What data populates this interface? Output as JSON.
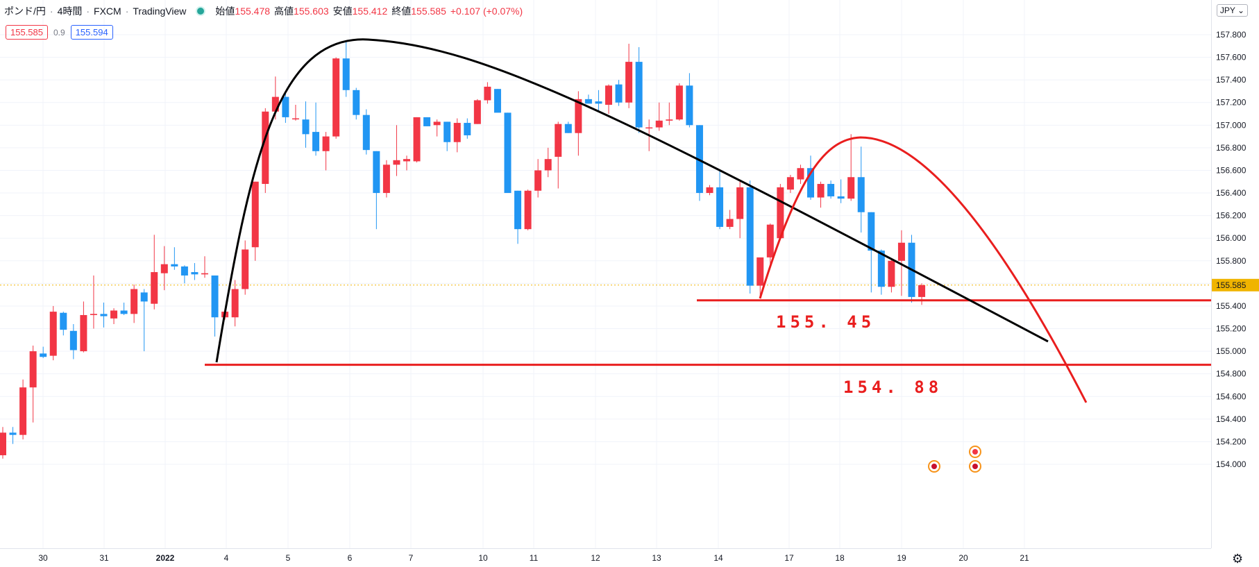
{
  "header": {
    "symbol": "ポンド/円",
    "interval": "4時間",
    "broker": "FXCM",
    "source": "TradingView",
    "open_label": "始値",
    "open": "155.478",
    "high_label": "高値",
    "high": "155.603",
    "low_label": "安値",
    "low": "155.412",
    "close_label": "終値",
    "close": "155.585",
    "change": "+0.107 (+0.07%)"
  },
  "quote": {
    "sell": "155.585",
    "spread": "0.9",
    "buy": "155.594"
  },
  "currency": "JPY",
  "price_axis": {
    "ticks": [
      "157.800",
      "157.600",
      "157.400",
      "157.200",
      "157.000",
      "156.800",
      "156.600",
      "156.400",
      "156.200",
      "156.000",
      "155.800",
      "155.600",
      "155.400",
      "155.200",
      "155.000",
      "154.800",
      "154.600",
      "154.400",
      "154.200",
      "154.000"
    ],
    "last_price": "155.585"
  },
  "time_axis": {
    "labels": [
      "30",
      "31",
      "2022",
      "4",
      "5",
      "6",
      "7",
      "10",
      "11",
      "12",
      "13",
      "14",
      "17",
      "18",
      "19",
      "20",
      "21"
    ]
  },
  "annotations": {
    "level1": "155. 45",
    "level2": "154. 88"
  },
  "colors": {
    "up": "#f23645",
    "down": "#2196f3",
    "drawing_red": "#e91e1e",
    "drawing_black": "#000000",
    "last_price": "#f0b400"
  },
  "chart_data": {
    "type": "candlestick",
    "title": "ポンド/円 4時間 FXCM",
    "ylim": [
      153.9,
      158.0
    ],
    "candles": [
      {
        "o": 154.08,
        "h": 154.33,
        "l": 154.05,
        "c": 154.28
      },
      {
        "o": 154.28,
        "h": 154.33,
        "l": 154.18,
        "c": 154.26
      },
      {
        "o": 154.26,
        "h": 154.75,
        "l": 154.22,
        "c": 154.68
      },
      {
        "o": 154.68,
        "h": 155.05,
        "l": 154.37,
        "c": 155.0
      },
      {
        "o": 154.98,
        "h": 155.04,
        "l": 154.94,
        "c": 154.95
      },
      {
        "o": 154.96,
        "h": 155.4,
        "l": 154.92,
        "c": 155.35
      },
      {
        "o": 155.34,
        "h": 155.35,
        "l": 155.14,
        "c": 155.19
      },
      {
        "o": 155.18,
        "h": 155.24,
        "l": 154.93,
        "c": 155.01
      },
      {
        "o": 155.0,
        "h": 155.44,
        "l": 154.99,
        "c": 155.32
      },
      {
        "o": 155.32,
        "h": 155.67,
        "l": 155.2,
        "c": 155.33
      },
      {
        "o": 155.33,
        "h": 155.43,
        "l": 155.21,
        "c": 155.31
      },
      {
        "o": 155.29,
        "h": 155.38,
        "l": 155.24,
        "c": 155.36
      },
      {
        "o": 155.36,
        "h": 155.43,
        "l": 155.32,
        "c": 155.33
      },
      {
        "o": 155.33,
        "h": 155.59,
        "l": 155.25,
        "c": 155.55
      },
      {
        "o": 155.52,
        "h": 155.55,
        "l": 155.0,
        "c": 155.44
      },
      {
        "o": 155.42,
        "h": 156.03,
        "l": 155.37,
        "c": 155.7
      },
      {
        "o": 155.69,
        "h": 155.93,
        "l": 155.54,
        "c": 155.77
      },
      {
        "o": 155.77,
        "h": 155.92,
        "l": 155.72,
        "c": 155.75
      },
      {
        "o": 155.75,
        "h": 155.76,
        "l": 155.6,
        "c": 155.67
      },
      {
        "o": 155.7,
        "h": 155.78,
        "l": 155.63,
        "c": 155.68
      },
      {
        "o": 155.68,
        "h": 155.84,
        "l": 155.65,
        "c": 155.69
      },
      {
        "o": 155.67,
        "h": 155.67,
        "l": 155.13,
        "c": 155.3
      },
      {
        "o": 155.3,
        "h": 155.35,
        "l": 155.28,
        "c": 155.35
      },
      {
        "o": 155.3,
        "h": 155.63,
        "l": 155.22,
        "c": 155.55
      },
      {
        "o": 155.55,
        "h": 155.98,
        "l": 155.5,
        "c": 155.9
      },
      {
        "o": 155.92,
        "h": 156.5,
        "l": 155.8,
        "c": 156.5
      },
      {
        "o": 156.48,
        "h": 157.15,
        "l": 156.4,
        "c": 157.12
      },
      {
        "o": 157.12,
        "h": 157.43,
        "l": 157.05,
        "c": 157.25
      },
      {
        "o": 157.25,
        "h": 157.28,
        "l": 157.02,
        "c": 157.07
      },
      {
        "o": 157.06,
        "h": 157.18,
        "l": 157.04,
        "c": 157.06
      },
      {
        "o": 157.05,
        "h": 157.21,
        "l": 156.8,
        "c": 156.92
      },
      {
        "o": 156.94,
        "h": 157.2,
        "l": 156.73,
        "c": 156.77
      },
      {
        "o": 156.77,
        "h": 156.94,
        "l": 156.6,
        "c": 156.9
      },
      {
        "o": 156.9,
        "h": 157.6,
        "l": 156.88,
        "c": 157.59
      },
      {
        "o": 157.59,
        "h": 157.75,
        "l": 157.25,
        "c": 157.31
      },
      {
        "o": 157.31,
        "h": 157.33,
        "l": 157.05,
        "c": 157.09
      },
      {
        "o": 157.09,
        "h": 157.14,
        "l": 156.74,
        "c": 156.78
      },
      {
        "o": 156.77,
        "h": 156.77,
        "l": 156.08,
        "c": 156.4
      },
      {
        "o": 156.4,
        "h": 156.69,
        "l": 156.36,
        "c": 156.65
      },
      {
        "o": 156.65,
        "h": 157.0,
        "l": 156.55,
        "c": 156.69
      },
      {
        "o": 156.68,
        "h": 156.73,
        "l": 156.6,
        "c": 156.7
      },
      {
        "o": 156.68,
        "h": 157.07,
        "l": 156.67,
        "c": 157.07
      },
      {
        "o": 157.07,
        "h": 157.07,
        "l": 156.99,
        "c": 156.99
      },
      {
        "o": 157.0,
        "h": 157.05,
        "l": 156.9,
        "c": 157.03
      },
      {
        "o": 157.03,
        "h": 157.03,
        "l": 156.77,
        "c": 156.85
      },
      {
        "o": 156.85,
        "h": 157.06,
        "l": 156.76,
        "c": 157.02
      },
      {
        "o": 157.02,
        "h": 157.06,
        "l": 156.88,
        "c": 156.91
      },
      {
        "o": 157.01,
        "h": 157.23,
        "l": 157.01,
        "c": 157.22
      },
      {
        "o": 157.22,
        "h": 157.38,
        "l": 157.19,
        "c": 157.34
      },
      {
        "o": 157.32,
        "h": 157.32,
        "l": 157.13,
        "c": 157.11
      },
      {
        "o": 157.11,
        "h": 157.11,
        "l": 156.4,
        "c": 156.4
      },
      {
        "o": 156.42,
        "h": 156.42,
        "l": 155.95,
        "c": 156.08
      },
      {
        "o": 156.08,
        "h": 156.43,
        "l": 156.07,
        "c": 156.42
      },
      {
        "o": 156.42,
        "h": 156.7,
        "l": 156.36,
        "c": 156.6
      },
      {
        "o": 156.6,
        "h": 156.8,
        "l": 156.54,
        "c": 156.7
      },
      {
        "o": 156.72,
        "h": 157.03,
        "l": 156.44,
        "c": 157.01
      },
      {
        "o": 157.01,
        "h": 157.03,
        "l": 156.93,
        "c": 156.93
      },
      {
        "o": 156.93,
        "h": 157.3,
        "l": 156.73,
        "c": 157.23
      },
      {
        "o": 157.23,
        "h": 157.27,
        "l": 157.21,
        "c": 157.19
      },
      {
        "o": 157.21,
        "h": 157.31,
        "l": 157.13,
        "c": 157.19
      },
      {
        "o": 157.18,
        "h": 157.36,
        "l": 157.1,
        "c": 157.35
      },
      {
        "o": 157.36,
        "h": 157.4,
        "l": 157.17,
        "c": 157.2
      },
      {
        "o": 157.2,
        "h": 157.72,
        "l": 157.15,
        "c": 157.56
      },
      {
        "o": 157.56,
        "h": 157.69,
        "l": 156.93,
        "c": 156.98
      },
      {
        "o": 156.98,
        "h": 157.05,
        "l": 156.77,
        "c": 156.98
      },
      {
        "o": 156.98,
        "h": 157.2,
        "l": 156.95,
        "c": 157.04
      },
      {
        "o": 157.04,
        "h": 157.2,
        "l": 157.0,
        "c": 157.05
      },
      {
        "o": 157.05,
        "h": 157.37,
        "l": 157.04,
        "c": 157.35
      },
      {
        "o": 157.35,
        "h": 157.46,
        "l": 156.98,
        "c": 157.0
      },
      {
        "o": 157.0,
        "h": 157.0,
        "l": 156.33,
        "c": 156.4
      },
      {
        "o": 156.4,
        "h": 156.47,
        "l": 156.38,
        "c": 156.45
      },
      {
        "o": 156.45,
        "h": 156.61,
        "l": 156.08,
        "c": 156.1
      },
      {
        "o": 156.1,
        "h": 156.25,
        "l": 156.08,
        "c": 156.17
      },
      {
        "o": 156.17,
        "h": 156.5,
        "l": 156.0,
        "c": 156.45
      },
      {
        "o": 156.45,
        "h": 156.51,
        "l": 155.51,
        "c": 155.58
      },
      {
        "o": 155.58,
        "h": 155.8,
        "l": 155.48,
        "c": 155.83
      },
      {
        "o": 155.83,
        "h": 156.13,
        "l": 155.77,
        "c": 156.12
      },
      {
        "o": 156.0,
        "h": 156.48,
        "l": 155.99,
        "c": 156.45
      },
      {
        "o": 156.43,
        "h": 156.56,
        "l": 156.4,
        "c": 156.54
      },
      {
        "o": 156.52,
        "h": 156.65,
        "l": 156.48,
        "c": 156.62
      },
      {
        "o": 156.62,
        "h": 156.73,
        "l": 156.34,
        "c": 156.36
      },
      {
        "o": 156.36,
        "h": 156.5,
        "l": 156.27,
        "c": 156.48
      },
      {
        "o": 156.48,
        "h": 156.51,
        "l": 156.35,
        "c": 156.37
      },
      {
        "o": 156.37,
        "h": 156.52,
        "l": 156.31,
        "c": 156.35
      },
      {
        "o": 156.35,
        "h": 156.92,
        "l": 156.33,
        "c": 156.54
      },
      {
        "o": 156.54,
        "h": 156.81,
        "l": 156.05,
        "c": 156.23
      },
      {
        "o": 156.23,
        "h": 156.23,
        "l": 155.52,
        "c": 155.89
      },
      {
        "o": 155.89,
        "h": 155.9,
        "l": 155.5,
        "c": 155.57
      },
      {
        "o": 155.57,
        "h": 155.81,
        "l": 155.52,
        "c": 155.8
      },
      {
        "o": 155.8,
        "h": 156.07,
        "l": 155.49,
        "c": 155.96
      },
      {
        "o": 155.96,
        "h": 156.03,
        "l": 155.43,
        "c": 155.48
      },
      {
        "o": 155.48,
        "h": 155.6,
        "l": 155.41,
        "c": 155.585
      }
    ]
  }
}
